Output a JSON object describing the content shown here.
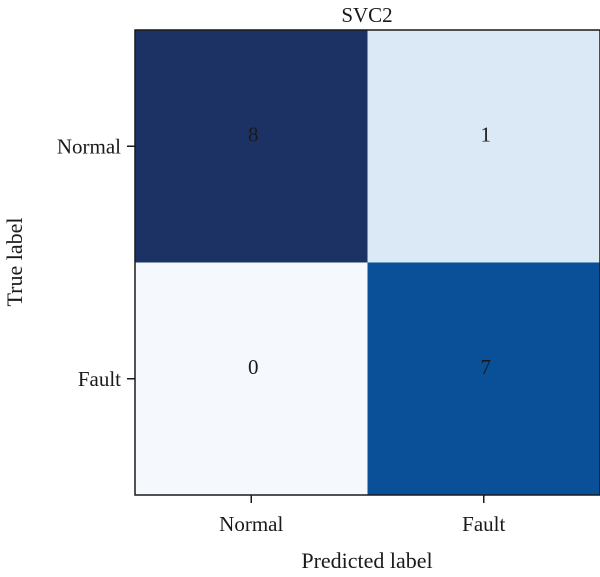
{
  "chart_data": {
    "type": "heatmap",
    "title": "SVC2",
    "xlabel": "Predicted label",
    "ylabel": "True label",
    "x_categories": [
      "Normal",
      "Fault"
    ],
    "y_categories": [
      "Normal",
      "Fault"
    ],
    "values": [
      [
        8,
        1
      ],
      [
        0,
        7
      ]
    ],
    "value_range": [
      0,
      8
    ],
    "colormap": "Blues",
    "colors": {
      "cell_8": "#1d3264",
      "cell_7": "#0a5099",
      "cell_1": "#dbe8f5",
      "cell_0": "#f5f9fe",
      "label_text": "#1a1a1a",
      "axis": "#1a1a1a"
    }
  }
}
